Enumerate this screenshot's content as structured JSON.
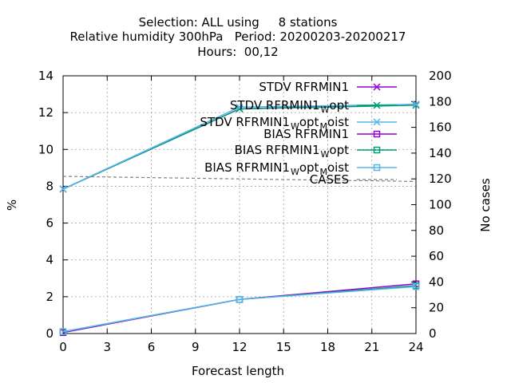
{
  "chart_data": {
    "type": "line",
    "title_lines": [
      "Selection: ALL using     8 stations",
      "Relative humidity 300hPa   Period: 20200203-20200217",
      "Hours:  00,12"
    ],
    "xlabel": "Forecast length",
    "ylabel": "%",
    "y2label": "No cases",
    "x": [
      0,
      12,
      24
    ],
    "xticks": [
      0,
      3,
      6,
      9,
      12,
      15,
      18,
      21,
      24
    ],
    "yticks": [
      0,
      2,
      4,
      6,
      8,
      10,
      12,
      14
    ],
    "y2ticks": [
      0,
      20,
      40,
      60,
      80,
      100,
      120,
      140,
      160,
      180,
      200
    ],
    "xlim": [
      0,
      24
    ],
    "ylim": [
      0,
      14
    ],
    "y2lim": [
      0,
      200
    ],
    "grid": true,
    "legend_position": "top-right",
    "series": [
      {
        "label_parts": [
          {
            "t": "STDV RFRMIN1"
          }
        ],
        "color": "#9400d3",
        "marker": "x",
        "values": [
          7.85,
          12.2,
          12.45
        ],
        "axis": "y"
      },
      {
        "label_parts": [
          {
            "t": "STDV RFRMIN1"
          },
          {
            "t": "W",
            "sub": true
          },
          {
            "t": "opt"
          }
        ],
        "color": "#009e73",
        "marker": "x",
        "values": [
          7.85,
          12.2,
          12.4
        ],
        "axis": "y"
      },
      {
        "label_parts": [
          {
            "t": "STDV RFRMIN1"
          },
          {
            "t": "W",
            "sub": true
          },
          {
            "t": "opt"
          },
          {
            "t": "M",
            "sub": true
          },
          {
            "t": "oist"
          }
        ],
        "color": "#56b4e9",
        "marker": "x",
        "values": [
          7.85,
          12.3,
          12.45
        ],
        "axis": "y"
      },
      {
        "label_parts": [
          {
            "t": "BIAS RFRMIN1"
          }
        ],
        "color": "#9400d3",
        "marker": "square",
        "values": [
          0.05,
          1.85,
          2.7
        ],
        "axis": "y"
      },
      {
        "label_parts": [
          {
            "t": "BIAS RFRMIN1"
          },
          {
            "t": "W",
            "sub": true
          },
          {
            "t": "opt"
          }
        ],
        "color": "#009e73",
        "marker": "square",
        "values": [
          0.1,
          1.85,
          2.6
        ],
        "axis": "y"
      },
      {
        "label_parts": [
          {
            "t": "BIAS RFRMIN1"
          },
          {
            "t": "W",
            "sub": true
          },
          {
            "t": "opt"
          },
          {
            "t": "M",
            "sub": true
          },
          {
            "t": "oist"
          }
        ],
        "color": "#56b4e9",
        "marker": "square",
        "values": [
          0.1,
          1.85,
          2.55
        ],
        "axis": "y"
      },
      {
        "label_parts": [
          {
            "t": "CASES"
          }
        ],
        "color": "#808080",
        "marker": "none",
        "dashed": true,
        "values": [
          122,
          120,
          118
        ],
        "axis": "y2"
      }
    ]
  }
}
